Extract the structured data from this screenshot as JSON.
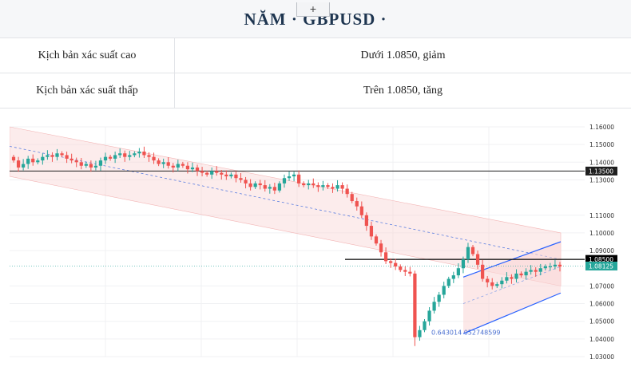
{
  "header": {
    "title": "NĂM · GBPUSD ·",
    "add_tab_label": "+"
  },
  "table": {
    "rows": [
      {
        "label": "Kịch bản xác suất cao",
        "value": "Dưới 1.0850, giảm"
      },
      {
        "label": "Kịch bản xác suất thấp",
        "value": "Trên 1.0850, tăng"
      }
    ]
  },
  "chart_data": {
    "type": "candlestick",
    "symbol": "GBPUSD",
    "ylim": [
      1.03,
      1.16
    ],
    "y_ticks": [
      "1.16000",
      "1.15000",
      "1.14000",
      "1.13000",
      "1.11000",
      "1.10000",
      "1.09000",
      "1.07000",
      "1.06000",
      "1.05000",
      "1.04000",
      "1.03000"
    ],
    "price_labels": [
      {
        "text": "1.13500",
        "value": 1.135,
        "color": "#1f1f1f"
      },
      {
        "text": "1.08500",
        "value": 1.085,
        "color": "#000000"
      },
      {
        "text": "1.08125",
        "value": 1.08125,
        "color": "#26a69a"
      }
    ],
    "horizontal_lines": [
      1.135,
      1.085
    ],
    "annotation": "0.643014 052748599",
    "colors": {
      "up": "#26a69a",
      "down": "#ef5350",
      "channel_fill": "#f9d5d5",
      "channel_line": "#2962ff"
    },
    "closes": [
      1.141,
      1.137,
      1.139,
      1.142,
      1.14,
      1.141,
      1.143,
      1.144,
      1.143,
      1.145,
      1.144,
      1.142,
      1.141,
      1.14,
      1.138,
      1.139,
      1.137,
      1.138,
      1.141,
      1.143,
      1.142,
      1.144,
      1.145,
      1.143,
      1.144,
      1.145,
      1.146,
      1.144,
      1.143,
      1.141,
      1.139,
      1.14,
      1.138,
      1.137,
      1.139,
      1.138,
      1.136,
      1.137,
      1.135,
      1.134,
      1.133,
      1.135,
      1.134,
      1.133,
      1.132,
      1.133,
      1.131,
      1.13,
      1.128,
      1.126,
      1.128,
      1.127,
      1.125,
      1.126,
      1.124,
      1.128,
      1.131,
      1.132,
      1.133,
      1.128,
      1.127,
      1.128,
      1.127,
      1.126,
      1.127,
      1.126,
      1.125,
      1.127,
      1.125,
      1.122,
      1.118,
      1.115,
      1.11,
      1.104,
      1.098,
      1.094,
      1.089,
      1.084,
      1.083,
      1.081,
      1.079,
      1.078,
      1.077,
      1.041,
      1.045,
      1.05,
      1.056,
      1.061,
      1.065,
      1.07,
      1.074,
      1.076,
      1.08,
      1.085,
      1.092,
      1.088,
      1.082,
      1.074,
      1.072,
      1.07,
      1.071,
      1.073,
      1.075,
      1.074,
      1.077,
      1.076,
      1.078,
      1.079,
      1.078,
      1.08,
      1.081,
      1.081,
      1.082,
      1.081
    ]
  }
}
